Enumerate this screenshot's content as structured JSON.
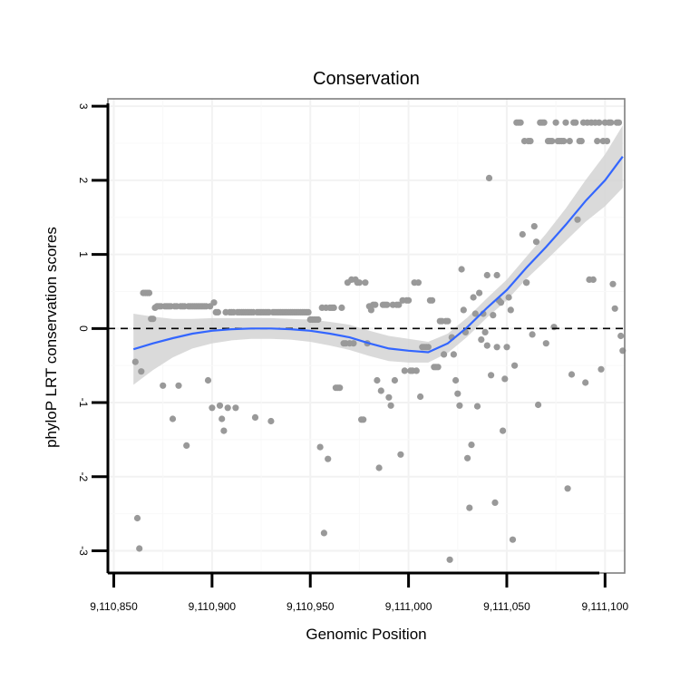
{
  "chart_data": {
    "type": "scatter",
    "title": "Conservation",
    "xlabel": "Genomic Position",
    "ylabel": "phyloP LRT conservation scores",
    "xlim": [
      9110847,
      9111110
    ],
    "ylim": [
      -3.3,
      3.1
    ],
    "x_ticks": [
      9110850,
      9110900,
      9110950,
      9111000,
      9111050,
      9111100
    ],
    "x_tick_labels": [
      "9,110,850",
      "9,110,900",
      "9,110,950",
      "9,111,000",
      "9,111,050",
      "9,111,100"
    ],
    "y_ticks": [
      -3,
      -2,
      -1,
      0,
      1,
      2,
      3
    ],
    "y_tick_labels": [
      "-3",
      "-2",
      "-1",
      "0",
      "1",
      "2",
      "3"
    ],
    "reference_line": {
      "y": 0,
      "style": "dashed"
    },
    "colors": {
      "points": "#999999",
      "smooth": "#3366ff",
      "ribbon": "#d3d3d3",
      "panel_border": "#7f7f7f",
      "grid": "#f2f2f2"
    },
    "points": [
      [
        9110861,
        -0.45
      ],
      [
        9110862,
        -2.56
      ],
      [
        9110863,
        -2.97
      ],
      [
        9110864,
        -0.58
      ],
      [
        9110865,
        0.48
      ],
      [
        9110866,
        0.48
      ],
      [
        9110867,
        0.48
      ],
      [
        9110868,
        0.48
      ],
      [
        9110869,
        0.13
      ],
      [
        9110870,
        0.13
      ],
      [
        9110871,
        0.28
      ],
      [
        9110872,
        0.3
      ],
      [
        9110873,
        0.3
      ],
      [
        9110874,
        0.3
      ],
      [
        9110875,
        -0.77
      ],
      [
        9110876,
        0.3
      ],
      [
        9110877,
        0.3
      ],
      [
        9110878,
        0.3
      ],
      [
        9110879,
        0.3
      ],
      [
        9110880,
        -1.22
      ],
      [
        9110881,
        0.3
      ],
      [
        9110882,
        0.3
      ],
      [
        9110883,
        -0.77
      ],
      [
        9110884,
        0.3
      ],
      [
        9110885,
        0.3
      ],
      [
        9110886,
        0.3
      ],
      [
        9110887,
        -1.58
      ],
      [
        9110888,
        0.3
      ],
      [
        9110889,
        0.3
      ],
      [
        9110890,
        0.3
      ],
      [
        9110891,
        0.3
      ],
      [
        9110892,
        0.3
      ],
      [
        9110893,
        0.3
      ],
      [
        9110894,
        0.3
      ],
      [
        9110895,
        0.3
      ],
      [
        9110896,
        0.3
      ],
      [
        9110897,
        0.3
      ],
      [
        9110898,
        -0.7
      ],
      [
        9110899,
        0.3
      ],
      [
        9110900,
        -1.07
      ],
      [
        9110901,
        0.35
      ],
      [
        9110902,
        0.22
      ],
      [
        9110903,
        0.22
      ],
      [
        9110904,
        -1.04
      ],
      [
        9110905,
        -1.22
      ],
      [
        9110906,
        -1.38
      ],
      [
        9110907,
        0.22
      ],
      [
        9110908,
        -1.07
      ],
      [
        9110909,
        0.22
      ],
      [
        9110910,
        0.22
      ],
      [
        9110911,
        0.22
      ],
      [
        9110912,
        -1.07
      ],
      [
        9110913,
        0.22
      ],
      [
        9110914,
        0.22
      ],
      [
        9110915,
        0.22
      ],
      [
        9110916,
        0.22
      ],
      [
        9110917,
        0.22
      ],
      [
        9110918,
        0.22
      ],
      [
        9110919,
        0.22
      ],
      [
        9110920,
        0.22
      ],
      [
        9110921,
        0.22
      ],
      [
        9110922,
        -1.2
      ],
      [
        9110923,
        0.22
      ],
      [
        9110924,
        0.22
      ],
      [
        9110925,
        0.22
      ],
      [
        9110926,
        0.22
      ],
      [
        9110927,
        0.22
      ],
      [
        9110928,
        0.22
      ],
      [
        9110929,
        0.22
      ],
      [
        9110930,
        -1.25
      ],
      [
        9110931,
        0.22
      ],
      [
        9110932,
        0.22
      ],
      [
        9110933,
        0.22
      ],
      [
        9110934,
        0.22
      ],
      [
        9110935,
        0.22
      ],
      [
        9110936,
        0.22
      ],
      [
        9110937,
        0.22
      ],
      [
        9110938,
        0.22
      ],
      [
        9110939,
        0.22
      ],
      [
        9110940,
        0.22
      ],
      [
        9110941,
        0.22
      ],
      [
        9110942,
        0.22
      ],
      [
        9110943,
        0.22
      ],
      [
        9110944,
        0.22
      ],
      [
        9110945,
        0.22
      ],
      [
        9110946,
        0.22
      ],
      [
        9110947,
        0.22
      ],
      [
        9110948,
        0.22
      ],
      [
        9110949,
        0.22
      ],
      [
        9110950,
        0.12
      ],
      [
        9110951,
        0.12
      ],
      [
        9110952,
        0.12
      ],
      [
        9110953,
        0.12
      ],
      [
        9110954,
        0.12
      ],
      [
        9110955,
        -1.6
      ],
      [
        9110956,
        0.28
      ],
      [
        9110957,
        -2.76
      ],
      [
        9110958,
        0.28
      ],
      [
        9110959,
        -1.76
      ],
      [
        9110960,
        0.28
      ],
      [
        9110961,
        0.28
      ],
      [
        9110962,
        0.28
      ],
      [
        9110963,
        -0.8
      ],
      [
        9110964,
        -0.8
      ],
      [
        9110965,
        -0.8
      ],
      [
        9110966,
        0.28
      ],
      [
        9110967,
        -0.2
      ],
      [
        9110968,
        -0.2
      ],
      [
        9110969,
        0.62
      ],
      [
        9110970,
        -0.2
      ],
      [
        9110971,
        0.66
      ],
      [
        9110972,
        -0.2
      ],
      [
        9110973,
        0.66
      ],
      [
        9110974,
        0.62
      ],
      [
        9110975,
        0.62
      ],
      [
        9110976,
        -1.23
      ],
      [
        9110977,
        -1.23
      ],
      [
        9110978,
        0.62
      ],
      [
        9110979,
        -0.2
      ],
      [
        9110980,
        0.3
      ],
      [
        9110981,
        0.25
      ],
      [
        9110982,
        0.32
      ],
      [
        9110983,
        0.32
      ],
      [
        9110984,
        -0.7
      ],
      [
        9110985,
        -1.88
      ],
      [
        9110986,
        -0.84
      ],
      [
        9110987,
        0.32
      ],
      [
        9110988,
        0.32
      ],
      [
        9110989,
        0.32
      ],
      [
        9110990,
        -0.93
      ],
      [
        9110991,
        -1.04
      ],
      [
        9110992,
        0.32
      ],
      [
        9110993,
        -0.7
      ],
      [
        9110994,
        0.32
      ],
      [
        9110995,
        0.32
      ],
      [
        9110996,
        -1.7
      ],
      [
        9110997,
        0.38
      ],
      [
        9110998,
        -0.57
      ],
      [
        9110999,
        0.38
      ],
      [
        9111000,
        0.38
      ],
      [
        9111001,
        -0.57
      ],
      [
        9111002,
        -0.57
      ],
      [
        9111003,
        0.62
      ],
      [
        9111004,
        -0.57
      ],
      [
        9111005,
        0.62
      ],
      [
        9111006,
        -0.92
      ],
      [
        9111007,
        -0.25
      ],
      [
        9111008,
        -0.25
      ],
      [
        9111009,
        -0.25
      ],
      [
        9111010,
        -0.25
      ],
      [
        9111011,
        0.38
      ],
      [
        9111012,
        0.38
      ],
      [
        9111013,
        -0.52
      ],
      [
        9111014,
        -0.52
      ],
      [
        9111015,
        -0.52
      ],
      [
        9111016,
        0.1
      ],
      [
        9111017,
        0.1
      ],
      [
        9111018,
        -0.35
      ],
      [
        9111019,
        0.1
      ],
      [
        9111020,
        0.1
      ],
      [
        9111021,
        -3.12
      ],
      [
        9111022,
        -0.12
      ],
      [
        9111023,
        -0.35
      ],
      [
        9111024,
        -0.7
      ],
      [
        9111025,
        -0.88
      ],
      [
        9111026,
        -1.04
      ],
      [
        9111027,
        0.8
      ],
      [
        9111028,
        0.25
      ],
      [
        9111029,
        -0.05
      ],
      [
        9111030,
        -1.75
      ],
      [
        9111031,
        -2.42
      ],
      [
        9111032,
        -1.57
      ],
      [
        9111033,
        0.42
      ],
      [
        9111034,
        0.2
      ],
      [
        9111035,
        -1.05
      ],
      [
        9111036,
        0.48
      ],
      [
        9111037,
        -0.15
      ],
      [
        9111038,
        0.2
      ],
      [
        9111039,
        -0.05
      ],
      [
        9111040,
        -0.23
      ],
      [
        9111041,
        2.03
      ],
      [
        9111042,
        -0.63
      ],
      [
        9111043,
        0.18
      ],
      [
        9111044,
        -2.35
      ],
      [
        9111045,
        0.72
      ],
      [
        9111046,
        0.38
      ],
      [
        9111047,
        0.35
      ],
      [
        9111048,
        -1.38
      ],
      [
        9111049,
        -0.68
      ],
      [
        9111050,
        -0.25
      ],
      [
        9111051,
        0.42
      ],
      [
        9111052,
        0.25
      ],
      [
        9111053,
        -2.85
      ],
      [
        9111054,
        -0.5
      ],
      [
        9111055,
        2.78
      ],
      [
        9111056,
        2.78
      ],
      [
        9111057,
        2.78
      ],
      [
        9111058,
        1.27
      ],
      [
        9111059,
        2.53
      ],
      [
        9111060,
        0.62
      ],
      [
        9111061,
        2.53
      ],
      [
        9111062,
        2.53
      ],
      [
        9111063,
        -0.08
      ],
      [
        9111064,
        1.38
      ],
      [
        9111065,
        1.17
      ],
      [
        9111066,
        -1.03
      ],
      [
        9111067,
        2.78
      ],
      [
        9111068,
        2.78
      ],
      [
        9111069,
        2.78
      ],
      [
        9111070,
        -0.2
      ],
      [
        9111071,
        2.53
      ],
      [
        9111072,
        2.53
      ],
      [
        9111073,
        2.53
      ],
      [
        9111074,
        0.02
      ],
      [
        9111075,
        2.78
      ],
      [
        9111076,
        2.53
      ],
      [
        9111077,
        2.53
      ],
      [
        9111078,
        2.53
      ],
      [
        9111079,
        2.53
      ],
      [
        9111080,
        2.78
      ],
      [
        9111081,
        -2.16
      ],
      [
        9111082,
        2.53
      ],
      [
        9111083,
        -0.62
      ],
      [
        9111084,
        2.78
      ],
      [
        9111085,
        2.78
      ],
      [
        9111086,
        1.47
      ],
      [
        9111087,
        2.53
      ],
      [
        9111088,
        2.53
      ],
      [
        9111089,
        2.78
      ],
      [
        9111090,
        -0.73
      ],
      [
        9111091,
        2.78
      ],
      [
        9111092,
        0.66
      ],
      [
        9111093,
        2.78
      ],
      [
        9111094,
        0.66
      ],
      [
        9111095,
        2.78
      ],
      [
        9111096,
        2.53
      ],
      [
        9111097,
        2.78
      ],
      [
        9111098,
        -0.55
      ],
      [
        9111099,
        2.53
      ],
      [
        9111100,
        2.78
      ],
      [
        9111101,
        2.53
      ],
      [
        9111102,
        2.78
      ],
      [
        9111103,
        2.78
      ],
      [
        9111104,
        0.6
      ],
      [
        9111105,
        0.27
      ],
      [
        9111106,
        2.78
      ],
      [
        9111107,
        2.78
      ],
      [
        9111108,
        -0.1
      ],
      [
        9111109,
        -0.3
      ],
      [
        9111060,
        0.62
      ],
      [
        9111045,
        -0.25
      ],
      [
        9111040,
        0.72
      ]
    ],
    "smooth_x": [
      9110860,
      9110870,
      9110880,
      9110890,
      9110900,
      9110910,
      9110920,
      9110930,
      9110940,
      9110950,
      9110960,
      9110970,
      9110980,
      9110990,
      9111000,
      9111010,
      9111020,
      9111030,
      9111040,
      9111050,
      9111060,
      9111070,
      9111080,
      9111090,
      9111100,
      9111109
    ],
    "smooth_y": [
      -0.28,
      -0.2,
      -0.13,
      -0.07,
      -0.03,
      -0.01,
      0.0,
      0.0,
      -0.01,
      -0.03,
      -0.07,
      -0.12,
      -0.2,
      -0.27,
      -0.3,
      -0.32,
      -0.2,
      0.02,
      0.28,
      0.52,
      0.82,
      1.1,
      1.4,
      1.72,
      2.0,
      2.32
    ],
    "smooth_se": [
      0.48,
      0.36,
      0.26,
      0.2,
      0.17,
      0.15,
      0.14,
      0.14,
      0.14,
      0.15,
      0.16,
      0.17,
      0.17,
      0.17,
      0.16,
      0.14,
      0.13,
      0.13,
      0.13,
      0.14,
      0.15,
      0.18,
      0.22,
      0.28,
      0.35,
      0.42
    ]
  }
}
